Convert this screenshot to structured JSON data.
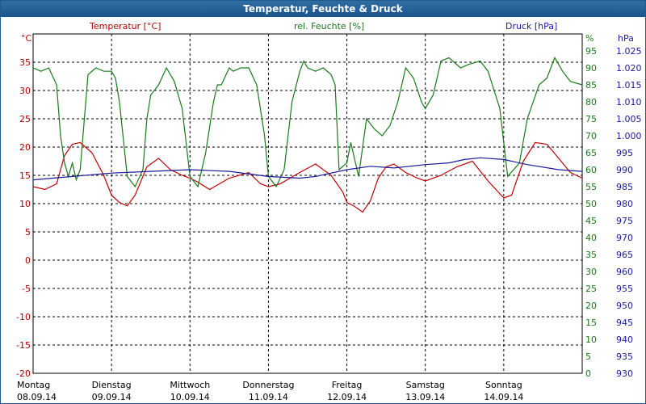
{
  "chart_data": {
    "type": "line",
    "title": "Temperatur, Feuchte & Druck",
    "axes": {
      "left": {
        "label": "Temperatur [°C]",
        "unit": "°C",
        "color": "#b00000",
        "min": -20,
        "max": 40,
        "ticks": [
          -20,
          -15,
          -10,
          -5,
          0,
          5,
          10,
          15,
          20,
          25,
          30,
          35
        ],
        "tick_labels": [
          "-20",
          "-15",
          "-10",
          "-5",
          "0",
          "5",
          "10",
          "15",
          "20",
          "25",
          "30",
          "35"
        ]
      },
      "right1": {
        "label": "rel. Feuchte [%]",
        "unit": "%",
        "color": "#1a7a1a",
        "min": 0,
        "max": 100,
        "ticks": [
          0,
          5,
          10,
          15,
          20,
          25,
          30,
          35,
          40,
          45,
          50,
          55,
          60,
          65,
          70,
          75,
          80,
          85,
          90,
          95
        ],
        "tick_labels": [
          "0",
          "5",
          "10",
          "15",
          "20",
          "25",
          "30",
          "35",
          "40",
          "45",
          "50",
          "55",
          "60",
          "65",
          "70",
          "75",
          "80",
          "85",
          "90",
          "95"
        ]
      },
      "right2": {
        "label": "Druck [hPa]",
        "unit": "hPa",
        "color": "#1a1a9a",
        "min": 930,
        "max": 1030,
        "ticks": [
          930,
          935,
          940,
          945,
          950,
          955,
          960,
          965,
          970,
          975,
          980,
          985,
          990,
          995,
          1000,
          1005,
          1010,
          1015,
          1020,
          1025
        ],
        "tick_labels": [
          "930",
          "935",
          "940",
          "945",
          "950",
          "955",
          "960",
          "965",
          "970",
          "975",
          "980",
          "985",
          "990",
          "995",
          "1.000",
          "1.005",
          "1.010",
          "1.015",
          "1.020",
          "1.025"
        ]
      },
      "x": {
        "min": 0,
        "max": 7,
        "grid": true
      }
    },
    "days": [
      {
        "weekday": "Montag",
        "date": "08.09.14"
      },
      {
        "weekday": "Dienstag",
        "date": "09.09.14"
      },
      {
        "weekday": "Mittwoch",
        "date": "10.09.14"
      },
      {
        "weekday": "Donnerstag",
        "date": "11.09.14"
      },
      {
        "weekday": "Freitag",
        "date": "12.09.14"
      },
      {
        "weekday": "Samstag",
        "date": "13.09.14"
      },
      {
        "weekday": "Sonntag",
        "date": "14.09.14"
      }
    ],
    "series": [
      {
        "name": "Temperatur [°C]",
        "axis": "left",
        "color": "#c00000",
        "x": [
          0,
          0.15,
          0.3,
          0.4,
          0.5,
          0.6,
          0.75,
          0.9,
          1.0,
          1.1,
          1.2,
          1.3,
          1.45,
          1.6,
          1.75,
          1.9,
          2.0,
          2.1,
          2.25,
          2.5,
          2.75,
          2.9,
          3.0,
          3.15,
          3.4,
          3.6,
          3.8,
          3.95,
          4.0,
          4.1,
          4.2,
          4.3,
          4.4,
          4.5,
          4.6,
          4.75,
          4.9,
          5.0,
          5.2,
          5.4,
          5.6,
          5.8,
          5.9,
          6.0,
          6.1,
          6.25,
          6.4,
          6.55,
          6.7,
          6.85,
          7.0
        ],
        "values": [
          13,
          12.5,
          13.5,
          18.5,
          20.5,
          20.8,
          19,
          15,
          11.5,
          10.2,
          9.6,
          11.5,
          16.5,
          18,
          16,
          15,
          14.5,
          13.8,
          12.5,
          14.5,
          15.5,
          13.5,
          13,
          13.5,
          15.5,
          17,
          15,
          12,
          10.2,
          9.5,
          8.5,
          10.5,
          14.5,
          16.5,
          17,
          15.5,
          14.5,
          14,
          15,
          16.5,
          17.5,
          14,
          12.5,
          11,
          11.5,
          17.5,
          20.8,
          20.5,
          18,
          15.5,
          14.5
        ]
      },
      {
        "name": "rel. Feuchte [%]",
        "axis": "right1",
        "color": "#1a7a1a",
        "x": [
          0,
          0.1,
          0.2,
          0.3,
          0.35,
          0.4,
          0.45,
          0.5,
          0.55,
          0.6,
          0.7,
          0.8,
          0.9,
          1.0,
          1.05,
          1.1,
          1.2,
          1.3,
          1.4,
          1.45,
          1.5,
          1.6,
          1.7,
          1.8,
          1.9,
          2.0,
          2.1,
          2.2,
          2.3,
          2.35,
          2.4,
          2.5,
          2.55,
          2.65,
          2.75,
          2.85,
          2.95,
          3.0,
          3.1,
          3.2,
          3.3,
          3.4,
          3.45,
          3.5,
          3.6,
          3.7,
          3.8,
          3.85,
          3.9,
          4.0,
          4.05,
          4.15,
          4.25,
          4.35,
          4.45,
          4.55,
          4.65,
          4.75,
          4.85,
          4.95,
          5.0,
          5.1,
          5.2,
          5.3,
          5.45,
          5.55,
          5.7,
          5.8,
          5.95,
          6.05,
          6.2,
          6.3,
          6.45,
          6.55,
          6.65,
          6.75,
          6.85,
          7.0
        ],
        "values": [
          90,
          89,
          90,
          85,
          70,
          62,
          58,
          62,
          57,
          60,
          88,
          90,
          89,
          89,
          87,
          80,
          58,
          55,
          60,
          75,
          82,
          85,
          90,
          86,
          78,
          58,
          55,
          65,
          80,
          85,
          85,
          90,
          89,
          90,
          90,
          85,
          70,
          58,
          55,
          60,
          80,
          89,
          92,
          90,
          89,
          90,
          88,
          85,
          60,
          62,
          68,
          58,
          75,
          72,
          70,
          73,
          80,
          90,
          87,
          80,
          78,
          82,
          92,
          93,
          90,
          91,
          92,
          89,
          78,
          58,
          62,
          75,
          85,
          87,
          93,
          89,
          86,
          85
        ]
      },
      {
        "name": "Druck [hPa]",
        "axis": "right2",
        "color": "#1a1a9a",
        "x": [
          0,
          0.5,
          1.0,
          1.5,
          2.0,
          2.5,
          3.0,
          3.4,
          3.6,
          4.0,
          4.3,
          4.6,
          4.8,
          5.0,
          5.3,
          5.5,
          5.7,
          6.0,
          6.3,
          6.7,
          7.0
        ],
        "values": [
          987,
          988,
          989,
          989.5,
          990,
          989.5,
          988,
          987.5,
          988,
          990,
          991,
          990.5,
          991,
          991.5,
          992,
          993,
          993.5,
          993,
          991.5,
          990,
          989.5
        ]
      }
    ]
  }
}
